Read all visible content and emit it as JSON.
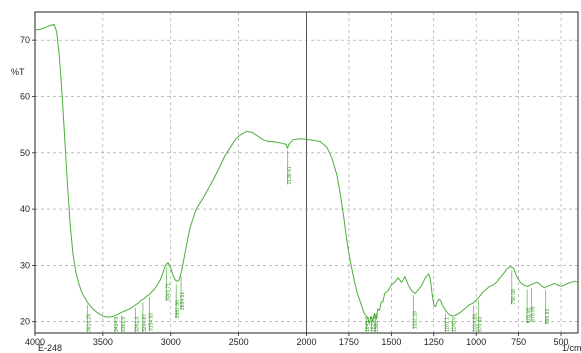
{
  "chart_data": {
    "type": "line",
    "title": "",
    "xlabel": "1/cm",
    "ylabel": "%T",
    "footer_label": "E-248",
    "xlim": [
      4000,
      400
    ],
    "ylim": [
      18,
      75
    ],
    "x_reversed": true,
    "grid": true,
    "grid_style": "dashed",
    "colors": {
      "trace": "#4caf3a",
      "label": "#3e9c2c",
      "axis": "#222222",
      "grid": "#9a9a9a",
      "footer": "#3a7bd5"
    },
    "x_ticks": [
      4000,
      3500,
      3000,
      2500,
      2000,
      1750,
      1500,
      1250,
      1000,
      750,
      500
    ],
    "y_ticks": [
      20,
      30,
      40,
      50,
      60,
      70
    ],
    "x_tick_labels": [
      "4000",
      "3500",
      "3000",
      "2500",
      "2000",
      "1750",
      "1500",
      "1250",
      "1000",
      "750",
      "500"
    ],
    "y_tick_labels": [
      "20",
      "30",
      "40",
      "50",
      "60",
      "70"
    ],
    "series": [
      {
        "x": [
          4000,
          3950,
          3900,
          3860,
          3840,
          3820,
          3800,
          3780,
          3760,
          3740,
          3720,
          3700,
          3680,
          3660,
          3640,
          3620,
          3600,
          3580,
          3560,
          3540,
          3520,
          3500,
          3480,
          3450,
          3420,
          3390,
          3360,
          3330,
          3300,
          3280,
          3260,
          3240,
          3220,
          3200,
          3180,
          3160,
          3140,
          3120,
          3100,
          3080,
          3060,
          3040,
          3020,
          3000,
          2980,
          2960,
          2940,
          2920,
          2900,
          2880,
          2860,
          2840,
          2820,
          2800,
          2760,
          2720,
          2680,
          2640,
          2600,
          2560,
          2520,
          2480,
          2440,
          2400,
          2360,
          2320,
          2280,
          2250,
          2200,
          2150,
          2140,
          2130,
          2100,
          2050,
          2000,
          1960,
          1920,
          1880,
          1850,
          1820,
          1800,
          1780,
          1760,
          1740,
          1720,
          1700,
          1680,
          1660,
          1640,
          1630,
          1620,
          1610,
          1600,
          1590,
          1580,
          1570,
          1560,
          1550,
          1540,
          1520,
          1500,
          1480,
          1460,
          1440,
          1420,
          1400,
          1380,
          1360,
          1340,
          1320,
          1300,
          1280,
          1270,
          1260,
          1250,
          1240,
          1230,
          1220,
          1210,
          1200,
          1180,
          1160,
          1140,
          1120,
          1100,
          1080,
          1060,
          1040,
          1020,
          1000,
          980,
          960,
          940,
          920,
          900,
          880,
          860,
          840,
          820,
          800,
          780,
          760,
          740,
          720,
          700,
          680,
          660,
          640,
          620,
          600,
          580,
          560,
          540,
          520,
          500,
          480,
          460,
          440,
          420,
          400
        ],
        "y": [
          71.8,
          72.0,
          72.5,
          72.8,
          71.5,
          67.0,
          60.0,
          52.0,
          44.0,
          37.0,
          32.0,
          29.0,
          27.0,
          25.5,
          24.5,
          23.7,
          23.0,
          22.5,
          22.0,
          21.6,
          21.3,
          21.0,
          20.9,
          20.8,
          21.0,
          21.3,
          21.7,
          22.0,
          22.3,
          22.6,
          23.0,
          23.3,
          23.8,
          24.0,
          24.5,
          24.8,
          25.3,
          25.8,
          26.5,
          27.3,
          28.5,
          30.0,
          30.5,
          29.5,
          28.0,
          27.2,
          27.3,
          29.0,
          31.5,
          34.0,
          36.5,
          38.0,
          39.5,
          40.5,
          42.0,
          43.8,
          45.5,
          47.5,
          49.5,
          51.0,
          52.5,
          53.3,
          53.8,
          53.6,
          53.0,
          52.3,
          52.0,
          52.0,
          51.8,
          51.5,
          50.8,
          51.5,
          52.3,
          52.5,
          52.4,
          52.2,
          52.0,
          51.0,
          49.0,
          46.0,
          42.5,
          38.5,
          34.0,
          30.5,
          27.5,
          25.0,
          23.3,
          21.5,
          20.7,
          19.7,
          21.0,
          20.0,
          21.5,
          20.5,
          22.3,
          22.0,
          23.5,
          23.5,
          25.0,
          25.5,
          26.5,
          27.0,
          27.8,
          27.0,
          28.0,
          26.5,
          25.5,
          25.0,
          25.7,
          26.5,
          27.8,
          28.5,
          27.5,
          25.0,
          23.0,
          22.7,
          23.5,
          24.0,
          23.8,
          23.0,
          22.0,
          21.3,
          21.0,
          21.2,
          21.5,
          22.0,
          22.5,
          23.0,
          23.3,
          23.8,
          24.5,
          25.3,
          25.8,
          26.3,
          26.5,
          27.0,
          27.8,
          28.5,
          29.3,
          29.8,
          29.5,
          28.0,
          27.0,
          26.5,
          26.3,
          26.5,
          26.8,
          27.0,
          26.5,
          26.0,
          26.3,
          26.5,
          26.8,
          26.5,
          26.3,
          26.5,
          26.8,
          27.0,
          27.2,
          27.0
        ]
      }
    ],
    "annotations": [
      {
        "x": 3615,
        "label": "3614.25"
      },
      {
        "x": 3410,
        "label": "3414.3"
      },
      {
        "x": 3360,
        "label": "3361.0"
      },
      {
        "x": 3260,
        "label": "3261.0"
      },
      {
        "x": 3205,
        "label": "3204.87"
      },
      {
        "x": 3155,
        "label": "3154.93"
      },
      {
        "x": 3030,
        "label": "3001.71"
      },
      {
        "x": 2960,
        "label": "2957.90"
      },
      {
        "x": 2924,
        "label": "2854.91"
      },
      {
        "x": 2138,
        "label": "2138.41"
      },
      {
        "x": 1648,
        "label": "1645.3"
      },
      {
        "x": 1618,
        "label": "1620.0"
      },
      {
        "x": 1595,
        "label": "1560.43"
      },
      {
        "x": 1370,
        "label": "1322.18"
      },
      {
        "x": 1180,
        "label": "1161.1"
      },
      {
        "x": 1140,
        "label": "1140.4"
      },
      {
        "x": 1015,
        "label": "1014.59"
      },
      {
        "x": 985,
        "label": "970.40"
      },
      {
        "x": 790,
        "label": "756.08"
      },
      {
        "x": 700,
        "label": "676.18"
      },
      {
        "x": 675,
        "label": "675.95"
      },
      {
        "x": 590,
        "label": "596.93"
      }
    ]
  }
}
